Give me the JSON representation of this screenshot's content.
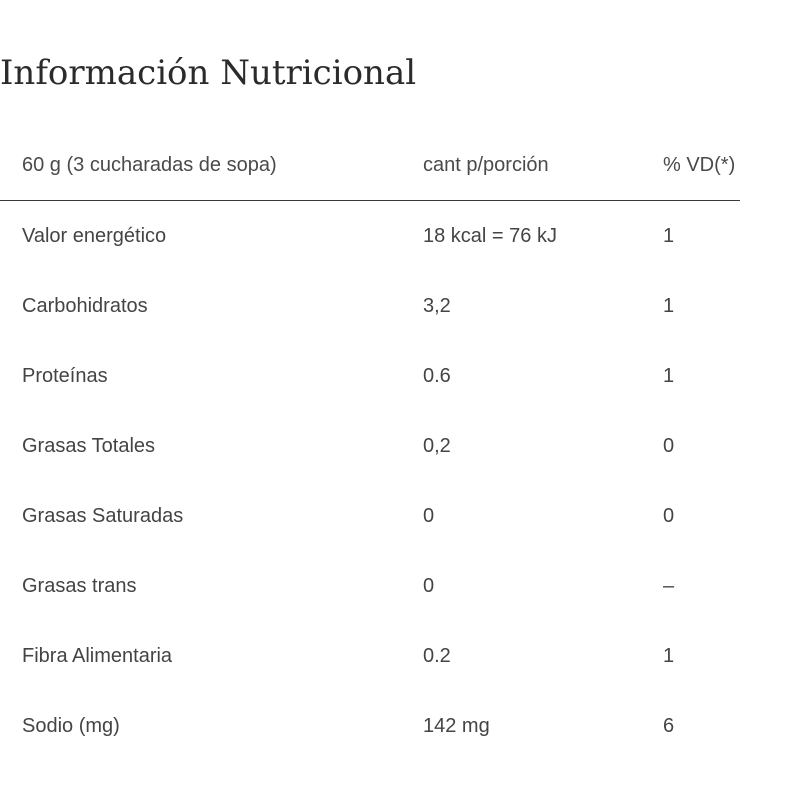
{
  "title": "Información Nutricional",
  "table": {
    "headers": [
      "60 g (3 cucharadas de sopa)",
      "cant p/porción",
      "% VD(*)"
    ],
    "rows": [
      [
        "Valor energético",
        "18 kcal = 76 kJ",
        "1"
      ],
      [
        "Carbohidratos",
        "3,2",
        "1"
      ],
      [
        "Proteínas",
        "0.6",
        "1"
      ],
      [
        "Grasas Totales",
        "0,2",
        "0"
      ],
      [
        "Grasas Saturadas",
        "0",
        "0"
      ],
      [
        "Grasas trans",
        "0",
        "–"
      ],
      [
        "Fibra Alimentaria",
        "0.2",
        "1"
      ],
      [
        "Sodio (mg)",
        "142 mg",
        "6"
      ]
    ]
  }
}
